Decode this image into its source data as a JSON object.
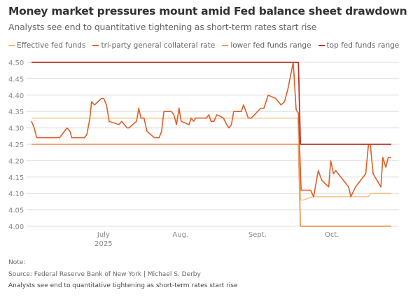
{
  "title": "Money market pressures mount amid Fed balance sheet drawdown",
  "subtitle": "Analysts see end to quantitative tightening as short-term rates start rise",
  "footer": {
    "note": "Note:",
    "source": "Source: Federal Reserve Bank of New York | Michael S. Derby",
    "caption": "Analysts see end to quantitative tightening as short-term rates start rise"
  },
  "chart_data": {
    "type": "line",
    "title": "Money market pressures mount amid Fed balance sheet drawdown",
    "x_unit": "days since June 2, 2025",
    "xlim": [
      0,
      148
    ],
    "ylim": [
      4.0,
      4.5
    ],
    "yticks": [
      "4.00",
      "4.05",
      "4.10",
      "4.15",
      "4.20",
      "4.25",
      "4.30",
      "4.35",
      "4.40",
      "4.45",
      "4.50"
    ],
    "xticks": [
      {
        "day": 29,
        "label": "July",
        "sub": "2025"
      },
      {
        "day": 60,
        "label": "Aug.",
        "sub": ""
      },
      {
        "day": 91,
        "label": "Sept.",
        "sub": ""
      },
      {
        "day": 121,
        "label": "Oct.",
        "sub": ""
      }
    ],
    "grid": true,
    "legend_position": "top",
    "series": [
      {
        "name": "Effective fed funds",
        "color": "#f6b976",
        "width": 1.3,
        "points": [
          [
            0,
            4.33
          ],
          [
            107.2,
            4.33
          ],
          [
            108.4,
            4.08
          ],
          [
            109.4,
            4.08
          ],
          [
            113.2,
            4.09
          ],
          [
            135.7,
            4.09
          ],
          [
            136.6,
            4.1
          ],
          [
            144.9,
            4.1
          ]
        ]
      },
      {
        "name": "tri-party general collateral rate",
        "color": "#df5f26",
        "width": 1.6,
        "points": [
          [
            0,
            4.32
          ],
          [
            1.1,
            4.3
          ],
          [
            2.1,
            4.27
          ],
          [
            11.3,
            4.27
          ],
          [
            14.3,
            4.3
          ],
          [
            15.5,
            4.29
          ],
          [
            16.2,
            4.27
          ],
          [
            21.3,
            4.27
          ],
          [
            22.3,
            4.28
          ],
          [
            23.5,
            4.33
          ],
          [
            24.2,
            4.38
          ],
          [
            25.4,
            4.37
          ],
          [
            28.2,
            4.39
          ],
          [
            29.1,
            4.39
          ],
          [
            30.2,
            4.37
          ],
          [
            31.3,
            4.32
          ],
          [
            35.2,
            4.31
          ],
          [
            36.3,
            4.32
          ],
          [
            38.5,
            4.3
          ],
          [
            39.2,
            4.3
          ],
          [
            42.3,
            4.32
          ],
          [
            43.2,
            4.36
          ],
          [
            44.1,
            4.33
          ],
          [
            45.3,
            4.33
          ],
          [
            46.5,
            4.29
          ],
          [
            49.5,
            4.27
          ],
          [
            51.4,
            4.27
          ],
          [
            52.4,
            4.29
          ],
          [
            53.3,
            4.35
          ],
          [
            56.3,
            4.35
          ],
          [
            57.3,
            4.34
          ],
          [
            58.4,
            4.31
          ],
          [
            59.4,
            4.36
          ],
          [
            60.3,
            4.32
          ],
          [
            63.4,
            4.31
          ],
          [
            64.3,
            4.33
          ],
          [
            65.3,
            4.32
          ],
          [
            66.2,
            4.33
          ],
          [
            70.4,
            4.33
          ],
          [
            71.4,
            4.34
          ],
          [
            72.3,
            4.32
          ],
          [
            73.5,
            4.32
          ],
          [
            74.6,
            4.34
          ],
          [
            76.1,
            4.335
          ],
          [
            77.3,
            4.33
          ],
          [
            78.6,
            4.31
          ],
          [
            79.5,
            4.3
          ],
          [
            80.5,
            4.31
          ],
          [
            81.4,
            4.35
          ],
          [
            84.5,
            4.35
          ],
          [
            85.4,
            4.37
          ],
          [
            87.3,
            4.33
          ],
          [
            88.5,
            4.33
          ],
          [
            92.3,
            4.36
          ],
          [
            93.6,
            4.36
          ],
          [
            95.3,
            4.4
          ],
          [
            98.3,
            4.39
          ],
          [
            100.5,
            4.37
          ],
          [
            101.9,
            4.38
          ],
          [
            103.3,
            4.42
          ],
          [
            105.4,
            4.5
          ],
          [
            106.6,
            4.355
          ],
          [
            107.5,
            4.345
          ],
          [
            108.6,
            4.11
          ],
          [
            112.4,
            4.11
          ],
          [
            113.6,
            4.09
          ],
          [
            115.5,
            4.17
          ],
          [
            116.9,
            4.14
          ],
          [
            119.7,
            4.12
          ],
          [
            120.5,
            4.2
          ],
          [
            121.6,
            4.16
          ],
          [
            122.5,
            4.17
          ],
          [
            127.7,
            4.12
          ],
          [
            128.6,
            4.09
          ],
          [
            130.5,
            4.12
          ],
          [
            134.6,
            4.16
          ],
          [
            135.7,
            4.25
          ],
          [
            136.4,
            4.25
          ],
          [
            137.6,
            4.16
          ],
          [
            140.7,
            4.12
          ],
          [
            141.5,
            4.21
          ],
          [
            142.7,
            4.18
          ],
          [
            143.7,
            4.21
          ],
          [
            144.9,
            4.21
          ]
        ]
      },
      {
        "name": "lower fed funds range",
        "color": "#ef9a5c",
        "width": 1.8,
        "points": [
          [
            0,
            4.25
          ],
          [
            107.5,
            4.25
          ],
          [
            108.3,
            4.0
          ],
          [
            144.9,
            4.0
          ]
        ]
      },
      {
        "name": "top fed funds range",
        "color": "#b5362b",
        "width": 1.8,
        "points": [
          [
            0,
            4.5
          ],
          [
            107.5,
            4.5
          ],
          [
            108.3,
            4.25
          ],
          [
            144.9,
            4.25
          ]
        ]
      }
    ]
  }
}
